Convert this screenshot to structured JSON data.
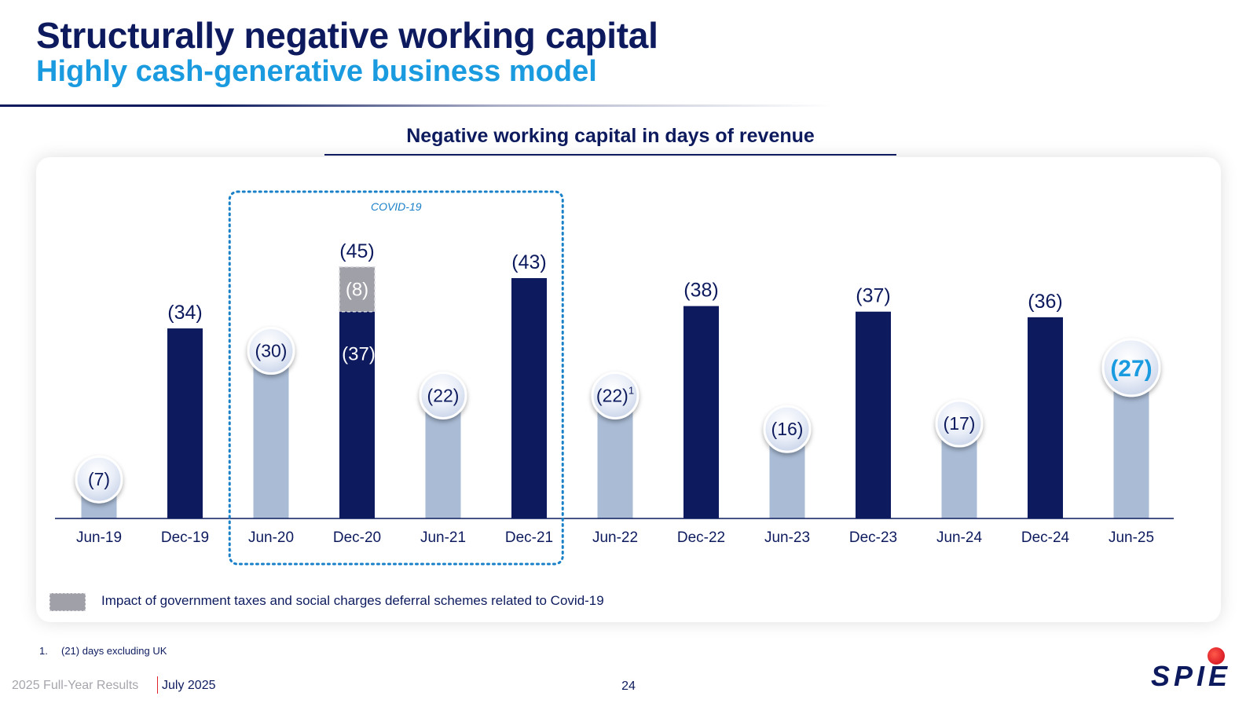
{
  "header": {
    "title": "Structurally negative working capital",
    "subtitle": "Highly cash-generative business model"
  },
  "chart_data": {
    "type": "bar",
    "title": "Negative working capital in days of revenue",
    "categories": [
      "Jun-19",
      "Dec-19",
      "Jun-20",
      "Dec-20",
      "Jun-21",
      "Dec-21",
      "Jun-22",
      "Dec-22",
      "Jun-23",
      "Dec-23",
      "Jun-24",
      "Dec-24",
      "Jun-25"
    ],
    "values": [
      7,
      34,
      30,
      45,
      22,
      43,
      22,
      38,
      16,
      37,
      17,
      36,
      27
    ],
    "value_labels": [
      "(7)",
      "(34)",
      "(30)",
      "(45)",
      "(22)",
      "(43)",
      "(22)",
      "(38)",
      "(16)",
      "(37)",
      "(17)",
      "(36)",
      "(27)"
    ],
    "value_label_superscripts": [
      "",
      "",
      "",
      "",
      "",
      "",
      "1",
      "",
      "",
      "",
      "",
      "",
      ""
    ],
    "period_type": [
      "Jun",
      "Dec",
      "Jun",
      "Dec",
      "Jun",
      "Dec",
      "Jun",
      "Dec",
      "Jun",
      "Dec",
      "Jun",
      "Dec",
      "Jun"
    ],
    "stacked_segment": {
      "category": "Dec-20",
      "base_value": 37,
      "base_label": "(37)",
      "top_value": 8,
      "top_label": "(8)"
    },
    "highlight": {
      "label": "COVID-19",
      "from": "Jun-20",
      "to": "Dec-21"
    },
    "ylim": [
      0,
      52
    ],
    "colors": {
      "dec_bar": "#0d1b5e",
      "jun_bar": "#a9bbd5",
      "covid_segment": "#a0a0a8",
      "highlight_border": "#1a80c8",
      "latest_label": "#1a9be0"
    },
    "legend": {
      "position": "bottom-left",
      "items": [
        {
          "label": "Impact of government taxes and social charges deferral schemes related to Covid-19",
          "color": "#a0a0a8"
        }
      ]
    }
  },
  "footnote": {
    "number": "1.",
    "text": "(21) days excluding UK"
  },
  "footer": {
    "left": "2025 Full-Year Results",
    "date": "July 2025",
    "page": "24",
    "logo_text": "SPIE",
    "logo_icon": "spie-dot-icon"
  }
}
